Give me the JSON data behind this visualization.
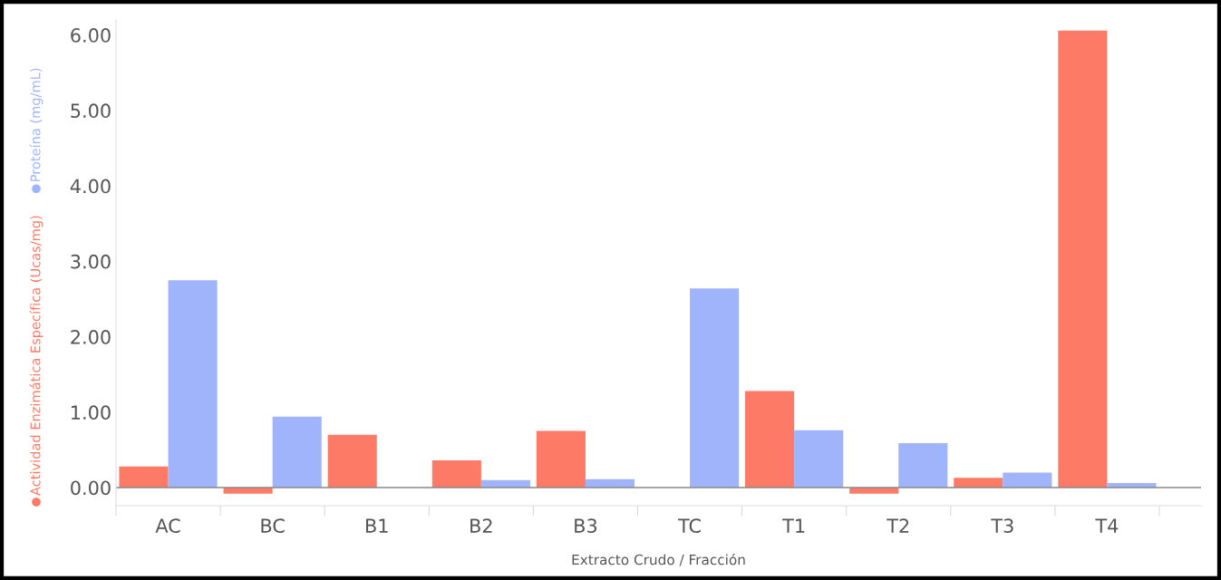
{
  "chart_data": {
    "type": "bar",
    "xlabel": "Extracto Crudo / Fracción",
    "categories": [
      "AC",
      "BC",
      "B1",
      "B2",
      "B3",
      "TC",
      "T1",
      "T2",
      "T3",
      "T4"
    ],
    "series": [
      {
        "name": "Actividad Enzimática Específica (Ucas/mg)",
        "color": "#fc7a66",
        "values": [
          0.28,
          -0.08,
          0.7,
          0.36,
          0.75,
          null,
          1.28,
          -0.08,
          0.13,
          6.06
        ]
      },
      {
        "name": "Proteína (mg/mL)",
        "color": "#a0b4fc",
        "values": [
          2.75,
          0.94,
          null,
          0.1,
          0.11,
          2.64,
          0.76,
          0.59,
          0.2,
          0.06
        ]
      }
    ],
    "ylim": [
      -0.24,
      6.2
    ],
    "yticks": [
      {
        "value": 0,
        "label": "0.00"
      },
      {
        "value": 1,
        "label": "1.00"
      },
      {
        "value": 2,
        "label": "2.00"
      },
      {
        "value": 3,
        "label": "3.00"
      },
      {
        "value": 4,
        "label": "4.00"
      },
      {
        "value": 5,
        "label": "5.00"
      },
      {
        "value": 6,
        "label": "6.00"
      }
    ],
    "ref_lines": [
      {
        "axis": "y",
        "value": 0,
        "color": "#888888"
      }
    ],
    "grid": false,
    "legend": "left"
  }
}
